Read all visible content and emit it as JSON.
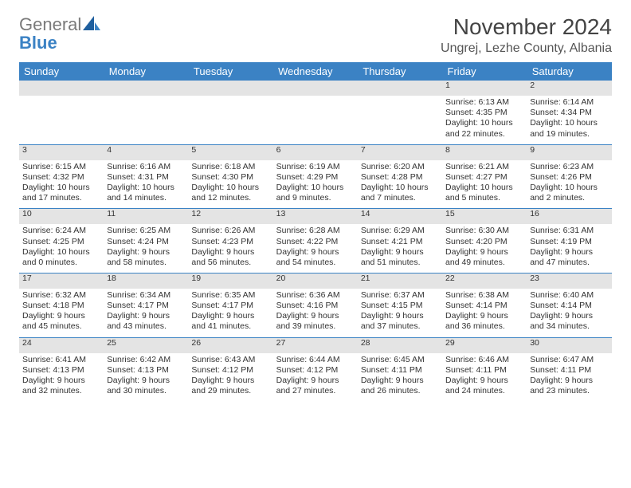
{
  "logo": {
    "general": "General",
    "blue": "Blue"
  },
  "title": "November 2024",
  "location": "Ungrej, Lezhe County, Albania",
  "colors": {
    "header_bg": "#3b82c4",
    "header_text": "#ffffff",
    "daynum_bg": "#e4e4e4",
    "rule": "#3b82c4",
    "body_text": "#333333",
    "logo_gray": "#7a7a7a",
    "logo_blue": "#3b82c4"
  },
  "weekdays": [
    "Sunday",
    "Monday",
    "Tuesday",
    "Wednesday",
    "Thursday",
    "Friday",
    "Saturday"
  ],
  "weeks": [
    [
      null,
      null,
      null,
      null,
      null,
      {
        "n": "1",
        "sunrise": "6:13 AM",
        "sunset": "4:35 PM",
        "dl1": "Daylight: 10 hours",
        "dl2": "and 22 minutes."
      },
      {
        "n": "2",
        "sunrise": "6:14 AM",
        "sunset": "4:34 PM",
        "dl1": "Daylight: 10 hours",
        "dl2": "and 19 minutes."
      }
    ],
    [
      {
        "n": "3",
        "sunrise": "6:15 AM",
        "sunset": "4:32 PM",
        "dl1": "Daylight: 10 hours",
        "dl2": "and 17 minutes."
      },
      {
        "n": "4",
        "sunrise": "6:16 AM",
        "sunset": "4:31 PM",
        "dl1": "Daylight: 10 hours",
        "dl2": "and 14 minutes."
      },
      {
        "n": "5",
        "sunrise": "6:18 AM",
        "sunset": "4:30 PM",
        "dl1": "Daylight: 10 hours",
        "dl2": "and 12 minutes."
      },
      {
        "n": "6",
        "sunrise": "6:19 AM",
        "sunset": "4:29 PM",
        "dl1": "Daylight: 10 hours",
        "dl2": "and 9 minutes."
      },
      {
        "n": "7",
        "sunrise": "6:20 AM",
        "sunset": "4:28 PM",
        "dl1": "Daylight: 10 hours",
        "dl2": "and 7 minutes."
      },
      {
        "n": "8",
        "sunrise": "6:21 AM",
        "sunset": "4:27 PM",
        "dl1": "Daylight: 10 hours",
        "dl2": "and 5 minutes."
      },
      {
        "n": "9",
        "sunrise": "6:23 AM",
        "sunset": "4:26 PM",
        "dl1": "Daylight: 10 hours",
        "dl2": "and 2 minutes."
      }
    ],
    [
      {
        "n": "10",
        "sunrise": "6:24 AM",
        "sunset": "4:25 PM",
        "dl1": "Daylight: 10 hours",
        "dl2": "and 0 minutes."
      },
      {
        "n": "11",
        "sunrise": "6:25 AM",
        "sunset": "4:24 PM",
        "dl1": "Daylight: 9 hours",
        "dl2": "and 58 minutes."
      },
      {
        "n": "12",
        "sunrise": "6:26 AM",
        "sunset": "4:23 PM",
        "dl1": "Daylight: 9 hours",
        "dl2": "and 56 minutes."
      },
      {
        "n": "13",
        "sunrise": "6:28 AM",
        "sunset": "4:22 PM",
        "dl1": "Daylight: 9 hours",
        "dl2": "and 54 minutes."
      },
      {
        "n": "14",
        "sunrise": "6:29 AM",
        "sunset": "4:21 PM",
        "dl1": "Daylight: 9 hours",
        "dl2": "and 51 minutes."
      },
      {
        "n": "15",
        "sunrise": "6:30 AM",
        "sunset": "4:20 PM",
        "dl1": "Daylight: 9 hours",
        "dl2": "and 49 minutes."
      },
      {
        "n": "16",
        "sunrise": "6:31 AM",
        "sunset": "4:19 PM",
        "dl1": "Daylight: 9 hours",
        "dl2": "and 47 minutes."
      }
    ],
    [
      {
        "n": "17",
        "sunrise": "6:32 AM",
        "sunset": "4:18 PM",
        "dl1": "Daylight: 9 hours",
        "dl2": "and 45 minutes."
      },
      {
        "n": "18",
        "sunrise": "6:34 AM",
        "sunset": "4:17 PM",
        "dl1": "Daylight: 9 hours",
        "dl2": "and 43 minutes."
      },
      {
        "n": "19",
        "sunrise": "6:35 AM",
        "sunset": "4:17 PM",
        "dl1": "Daylight: 9 hours",
        "dl2": "and 41 minutes."
      },
      {
        "n": "20",
        "sunrise": "6:36 AM",
        "sunset": "4:16 PM",
        "dl1": "Daylight: 9 hours",
        "dl2": "and 39 minutes."
      },
      {
        "n": "21",
        "sunrise": "6:37 AM",
        "sunset": "4:15 PM",
        "dl1": "Daylight: 9 hours",
        "dl2": "and 37 minutes."
      },
      {
        "n": "22",
        "sunrise": "6:38 AM",
        "sunset": "4:14 PM",
        "dl1": "Daylight: 9 hours",
        "dl2": "and 36 minutes."
      },
      {
        "n": "23",
        "sunrise": "6:40 AM",
        "sunset": "4:14 PM",
        "dl1": "Daylight: 9 hours",
        "dl2": "and 34 minutes."
      }
    ],
    [
      {
        "n": "24",
        "sunrise": "6:41 AM",
        "sunset": "4:13 PM",
        "dl1": "Daylight: 9 hours",
        "dl2": "and 32 minutes."
      },
      {
        "n": "25",
        "sunrise": "6:42 AM",
        "sunset": "4:13 PM",
        "dl1": "Daylight: 9 hours",
        "dl2": "and 30 minutes."
      },
      {
        "n": "26",
        "sunrise": "6:43 AM",
        "sunset": "4:12 PM",
        "dl1": "Daylight: 9 hours",
        "dl2": "and 29 minutes."
      },
      {
        "n": "27",
        "sunrise": "6:44 AM",
        "sunset": "4:12 PM",
        "dl1": "Daylight: 9 hours",
        "dl2": "and 27 minutes."
      },
      {
        "n": "28",
        "sunrise": "6:45 AM",
        "sunset": "4:11 PM",
        "dl1": "Daylight: 9 hours",
        "dl2": "and 26 minutes."
      },
      {
        "n": "29",
        "sunrise": "6:46 AM",
        "sunset": "4:11 PM",
        "dl1": "Daylight: 9 hours",
        "dl2": "and 24 minutes."
      },
      {
        "n": "30",
        "sunrise": "6:47 AM",
        "sunset": "4:11 PM",
        "dl1": "Daylight: 9 hours",
        "dl2": "and 23 minutes."
      }
    ]
  ],
  "labels": {
    "sunrise": "Sunrise: ",
    "sunset": "Sunset: "
  }
}
